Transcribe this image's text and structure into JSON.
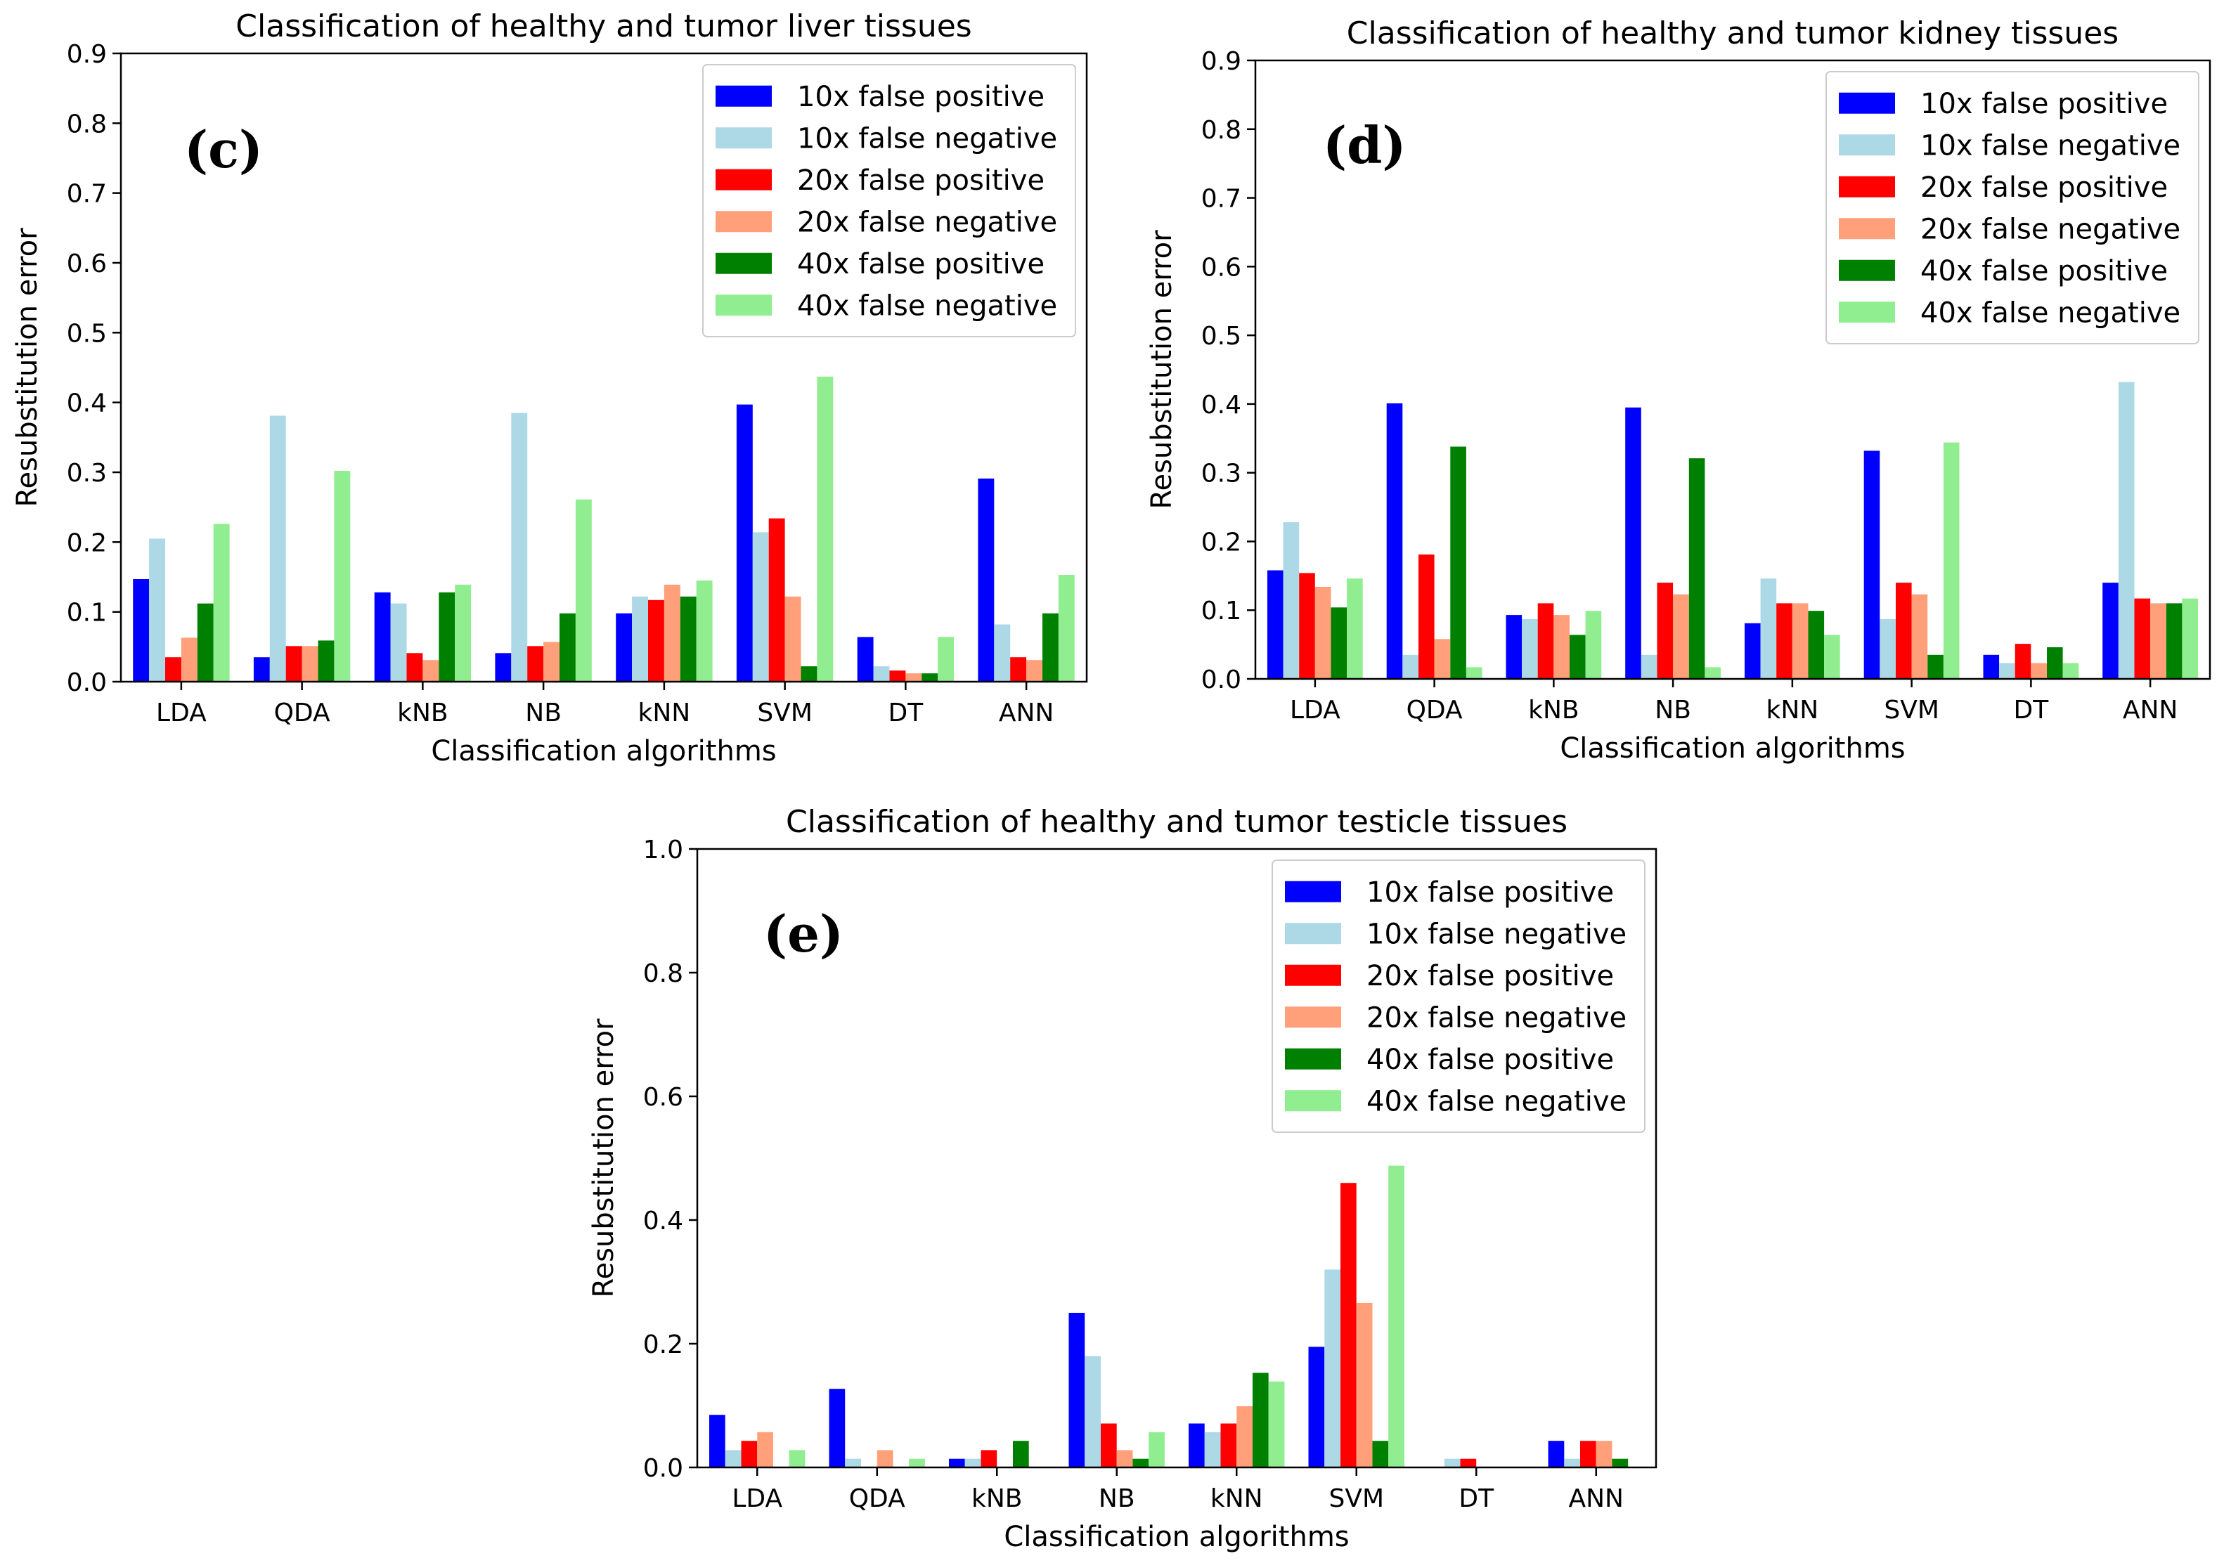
{
  "colors": {
    "10x_fp": "#0000ff",
    "10x_fn": "#add8e6",
    "20x_fp": "#ff0000",
    "20x_fn": "#ffa07a",
    "40x_fp": "#008000",
    "40x_fn": "#90ee90"
  },
  "chart_data": [
    {
      "id": "c",
      "type": "bar",
      "panel_label": "(c)",
      "title": "Classification of healthy and tumor liver tissues",
      "xlabel": "Classification algorithms",
      "ylabel": "Resubstitution error",
      "ylim": [
        0,
        0.9
      ],
      "yticks": [
        0.0,
        0.1,
        0.2,
        0.3,
        0.4,
        0.5,
        0.6,
        0.7,
        0.8,
        0.9
      ],
      "ytick_labels": [
        "0.0",
        "0.1",
        "0.2",
        "0.3",
        "0.4",
        "0.5",
        "0.6",
        "0.7",
        "0.8",
        "0.9"
      ],
      "legend_position": "top-right",
      "categories": [
        "LDA",
        "QDA",
        "kNB",
        "NB",
        "kNN",
        "SVM",
        "DT",
        "ANN"
      ],
      "series": [
        {
          "name": "10x false positive",
          "color_key": "10x_fp",
          "values": [
            0.147,
            0.035,
            0.128,
            0.041,
            0.098,
            0.397,
            0.064,
            0.291
          ]
        },
        {
          "name": "10x false negative",
          "color_key": "10x_fn",
          "values": [
            0.205,
            0.381,
            0.112,
            0.385,
            0.122,
            0.214,
            0.022,
            0.082
          ]
        },
        {
          "name": "20x false positive",
          "color_key": "20x_fp",
          "values": [
            0.035,
            0.051,
            0.041,
            0.051,
            0.117,
            0.234,
            0.016,
            0.035
          ]
        },
        {
          "name": "20x false negative",
          "color_key": "20x_fn",
          "values": [
            0.063,
            0.051,
            0.031,
            0.057,
            0.139,
            0.122,
            0.012,
            0.031
          ]
        },
        {
          "name": "40x false positive",
          "color_key": "40x_fp",
          "values": [
            0.112,
            0.059,
            0.128,
            0.098,
            0.122,
            0.022,
            0.012,
            0.098
          ]
        },
        {
          "name": "40x false negative",
          "color_key": "40x_fn",
          "values": [
            0.226,
            0.302,
            0.139,
            0.261,
            0.145,
            0.437,
            0.064,
            0.153
          ]
        }
      ]
    },
    {
      "id": "d",
      "type": "bar",
      "panel_label": "(d)",
      "title": "Classification of healthy and tumor kidney tissues",
      "xlabel": "Classification algorithms",
      "ylabel": "Resubstitution error",
      "ylim": [
        0,
        0.9
      ],
      "yticks": [
        0.0,
        0.1,
        0.2,
        0.3,
        0.4,
        0.5,
        0.6,
        0.7,
        0.8,
        0.9
      ],
      "ytick_labels": [
        "0.0",
        "0.1",
        "0.2",
        "0.3",
        "0.4",
        "0.5",
        "0.6",
        "0.7",
        "0.8",
        "0.9"
      ],
      "legend_position": "top-right",
      "categories": [
        "LDA",
        "QDA",
        "kNB",
        "NB",
        "kNN",
        "SVM",
        "DT",
        "ANN"
      ],
      "series": [
        {
          "name": "10x false positive",
          "color_key": "10x_fp",
          "values": [
            0.158,
            0.401,
            0.093,
            0.395,
            0.081,
            0.332,
            0.035,
            0.14
          ]
        },
        {
          "name": "10x false negative",
          "color_key": "10x_fn",
          "values": [
            0.228,
            0.035,
            0.087,
            0.035,
            0.146,
            0.087,
            0.023,
            0.432
          ]
        },
        {
          "name": "20x false positive",
          "color_key": "20x_fp",
          "values": [
            0.154,
            0.181,
            0.11,
            0.14,
            0.11,
            0.14,
            0.051,
            0.117
          ]
        },
        {
          "name": "20x false negative",
          "color_key": "20x_fn",
          "values": [
            0.134,
            0.058,
            0.093,
            0.123,
            0.11,
            0.123,
            0.023,
            0.11
          ]
        },
        {
          "name": "40x false positive",
          "color_key": "40x_fp",
          "values": [
            0.104,
            0.338,
            0.064,
            0.321,
            0.099,
            0.035,
            0.046,
            0.11
          ]
        },
        {
          "name": "40x false negative",
          "color_key": "40x_fn",
          "values": [
            0.146,
            0.017,
            0.099,
            0.017,
            0.064,
            0.344,
            0.023,
            0.117
          ]
        }
      ]
    },
    {
      "id": "e",
      "type": "bar",
      "panel_label": "(e)",
      "title": "Classification of healthy and tumor testicle tissues",
      "xlabel": "Classification algorithms",
      "ylabel": "Resubstitution error",
      "ylim": [
        0,
        1.0
      ],
      "yticks": [
        0.0,
        0.2,
        0.4,
        0.6,
        0.8,
        1.0
      ],
      "ytick_labels": [
        "0.0",
        "0.2",
        "0.4",
        "0.6",
        "0.8",
        "1.0"
      ],
      "legend_position": "top-right",
      "categories": [
        "LDA",
        "QDA",
        "kNB",
        "NB",
        "kNN",
        "SVM",
        "DT",
        "ANN"
      ],
      "series": [
        {
          "name": "10x false positive",
          "color_key": "10x_fp",
          "values": [
            0.085,
            0.127,
            0.014,
            0.25,
            0.071,
            0.195,
            0.0,
            0.043
          ]
        },
        {
          "name": "10x false negative",
          "color_key": "10x_fn",
          "values": [
            0.028,
            0.014,
            0.014,
            0.18,
            0.057,
            0.32,
            0.014,
            0.014
          ]
        },
        {
          "name": "20x false positive",
          "color_key": "20x_fp",
          "values": [
            0.043,
            0.0,
            0.028,
            0.071,
            0.071,
            0.46,
            0.014,
            0.043
          ]
        },
        {
          "name": "20x false negative",
          "color_key": "20x_fn",
          "values": [
            0.057,
            0.028,
            0.0,
            0.028,
            0.099,
            0.266,
            0.0,
            0.043
          ]
        },
        {
          "name": "40x false positive",
          "color_key": "40x_fp",
          "values": [
            0.0,
            0.0,
            0.043,
            0.014,
            0.153,
            0.043,
            0.0,
            0.014
          ]
        },
        {
          "name": "40x false negative",
          "color_key": "40x_fn",
          "values": [
            0.028,
            0.014,
            0.0,
            0.057,
            0.139,
            0.488,
            0.0,
            0.0
          ]
        }
      ]
    }
  ]
}
